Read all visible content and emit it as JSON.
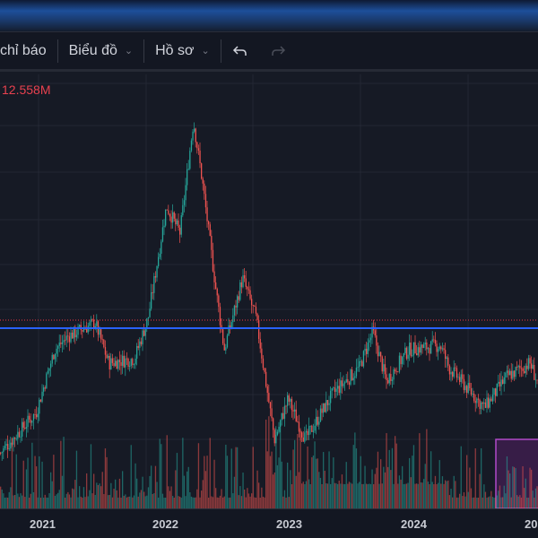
{
  "toolbar": {
    "indicators_label": "chỉ báo",
    "chart_label": "Biểu đồ",
    "profile_label": "Hồ sơ",
    "undo_icon": "undo-icon",
    "redo_icon": "redo-icon"
  },
  "chart": {
    "volume_value": "12.558M"
  },
  "axis": {
    "years": [
      "2021",
      "2022",
      "2023",
      "2024",
      "20"
    ]
  },
  "colors": {
    "up": "#26a69a",
    "down": "#ef5350",
    "line": "#2962ff",
    "dotted": "#f23645",
    "box": "#9c27b0"
  },
  "chart_data": {
    "type": "candlestick",
    "x_unit": "year",
    "price_path": [
      [
        2020.65,
        16.25
      ],
      [
        2020.94,
        27.5
      ],
      [
        2021.09,
        45
      ],
      [
        2021.2,
        48.75
      ],
      [
        2021.42,
        52.5
      ],
      [
        2021.53,
        41.25
      ],
      [
        2021.74,
        42.5
      ],
      [
        2021.85,
        53.75
      ],
      [
        2022.0,
        85
      ],
      [
        2022.11,
        77.5
      ],
      [
        2022.22,
        108.75
      ],
      [
        2022.29,
        92.5
      ],
      [
        2022.4,
        62.5
      ],
      [
        2022.47,
        45
      ],
      [
        2022.62,
        65
      ],
      [
        2022.73,
        53.75
      ],
      [
        2022.88,
        20
      ],
      [
        2022.99,
        31.25
      ],
      [
        2023.13,
        20
      ],
      [
        2023.35,
        32.5
      ],
      [
        2023.57,
        40
      ],
      [
        2023.68,
        50
      ],
      [
        2023.79,
        36.25
      ],
      [
        2023.97,
        45
      ],
      [
        2024.23,
        46.25
      ],
      [
        2024.3,
        40
      ],
      [
        2024.59,
        28.75
      ],
      [
        2024.77,
        37.5
      ],
      [
        2024.96,
        41.25
      ],
      [
        2025.03,
        35
      ]
    ],
    "horizontal_line": 51,
    "dotted_line": 53.25,
    "xlim": [
      2020.65,
      2025.03
    ]
  }
}
